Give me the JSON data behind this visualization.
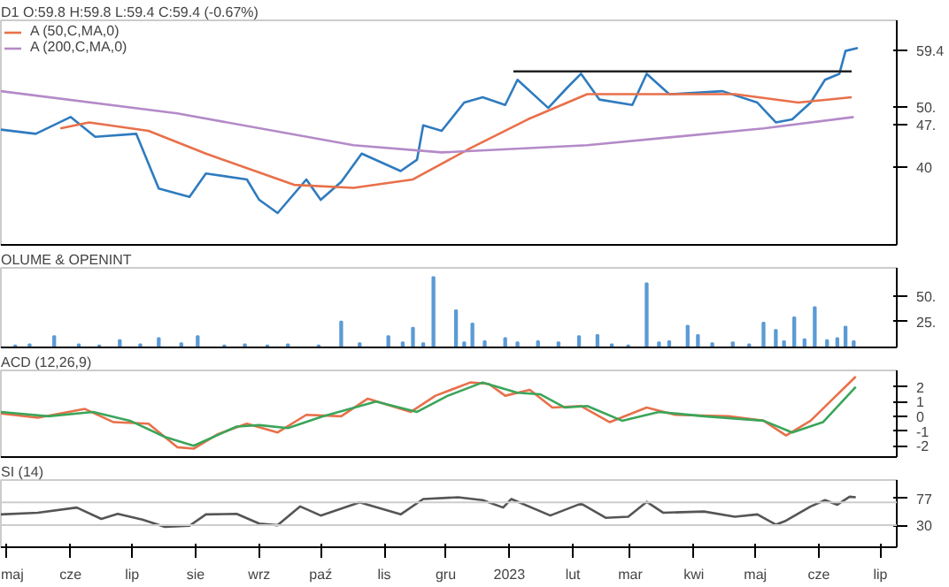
{
  "chart_data": [
    {
      "type": "line",
      "title": "D1 O:59.8 H:59.8 L:59.4 C:59.4 (-0.67%)",
      "xlim": [
        "2022-04-28",
        "2023-07-09"
      ],
      "ylim": [
        27.0,
        64.4
      ],
      "yticks": [
        40,
        {
          "value": 59.4,
          "label": "59.4"
        },
        {
          "value": 50,
          "label": "50."
        },
        {
          "value": 47,
          "label": "47."
        }
      ],
      "tick_labels": "y",
      "legend": "top left",
      "series": [
        {
          "color": "#2f7bbf",
          "x": [
            "2022-04-28",
            "2022-05-15",
            "2022-06-01",
            "2022-06-13",
            "2022-07-03",
            "2022-07-14",
            "2022-07-29",
            "2022-08-06",
            "2022-08-26",
            "2022-09-01",
            "2022-09-10",
            "2022-09-24",
            "2022-10-01",
            "2022-10-11",
            "2022-10-21",
            "2022-11-09",
            "2022-11-17",
            "2022-11-20",
            "2022-11-29",
            "2022-12-10",
            "2022-12-19",
            "2022-12-30",
            "2023-01-05",
            "2023-01-20",
            "2023-01-29",
            "2023-02-05",
            "2023-02-14",
            "2023-03-02",
            "2023-03-09",
            "2023-03-20",
            "2023-04-15",
            "2023-05-02",
            "2023-05-11",
            "2023-05-19",
            "2023-05-28",
            "2023-06-04",
            "2023-06-11",
            "2023-06-14",
            "2023-06-20"
          ],
          "values": [
            46.2,
            45.5,
            48.3,
            45.0,
            45.5,
            36.4,
            35.0,
            38.9,
            37.9,
            34.5,
            32.3,
            37.9,
            34.5,
            37.5,
            42.2,
            39.3,
            41.2,
            46.9,
            46.0,
            50.7,
            51.6,
            50.3,
            54.5,
            49.8,
            53.1,
            55.5,
            51.2,
            50.3,
            55.5,
            52.1,
            52.6,
            50.7,
            47.4,
            47.9,
            50.7,
            54.5,
            55.5,
            59.3,
            59.8
          ]
        },
        {
          "name": "A (50,C,MA,0)",
          "color": "#e8704a",
          "x": [
            "2022-05-27",
            "2022-06-10",
            "2022-07-09",
            "2022-08-06",
            "2022-09-18",
            "2022-10-17",
            "2022-11-15",
            "2022-12-13",
            "2023-01-10",
            "2023-02-08",
            "2023-03-09",
            "2023-04-21",
            "2023-05-22",
            "2023-06-17"
          ],
          "values": [
            46.4,
            47.4,
            46.0,
            42.2,
            37.0,
            36.5,
            37.9,
            43.1,
            47.9,
            52.1,
            52.1,
            52.1,
            50.7,
            51.6
          ]
        },
        {
          "name": "A (200,C,MA,0)",
          "color": "#b48ac8",
          "x": [
            "2022-04-28",
            "2022-07-23",
            "2022-10-17",
            "2022-11-29",
            "2023-02-08",
            "2023-05-05",
            "2023-06-18"
          ],
          "values": [
            52.6,
            48.9,
            43.6,
            42.4,
            43.6,
            46.4,
            48.3
          ]
        },
        {
          "color": "#222222",
          "x": [
            "2023-01-03",
            "2023-06-17"
          ],
          "values": [
            55.9,
            55.9
          ]
        }
      ]
    },
    {
      "type": "bar",
      "title": "OLUME & OPENINT",
      "xlim": [
        "2022-04-28",
        "2023-07-09"
      ],
      "ylim": [
        0,
        77
      ],
      "yticks": [
        {
          "value": 25,
          "label": "25."
        },
        {
          "value": 50,
          "label": "50."
        }
      ],
      "tick_labels": "y",
      "series": [
        {
          "color": "#5b9bd5",
          "x": [
            "2022-05-05",
            "2022-05-12",
            "2022-05-24",
            "2022-06-05",
            "2022-06-15",
            "2022-06-25",
            "2022-07-05",
            "2022-07-14",
            "2022-07-25",
            "2022-08-02",
            "2022-08-15",
            "2022-08-25",
            "2022-09-05",
            "2022-09-15",
            "2022-09-30",
            "2022-10-11",
            "2022-10-20",
            "2022-11-03",
            "2022-11-10",
            "2022-11-15",
            "2022-11-20",
            "2022-11-25",
            "2022-12-06",
            "2022-12-10",
            "2022-12-14",
            "2022-12-20",
            "2022-12-30",
            "2023-01-05",
            "2023-01-15",
            "2023-01-25",
            "2023-02-04",
            "2023-02-13",
            "2023-02-20",
            "2023-02-28",
            "2023-03-09",
            "2023-03-15",
            "2023-03-20",
            "2023-03-29",
            "2023-04-03",
            "2023-04-10",
            "2023-04-20",
            "2023-04-28",
            "2023-05-05",
            "2023-05-11",
            "2023-05-15",
            "2023-05-20",
            "2023-05-25",
            "2023-05-30",
            "2023-06-05",
            "2023-06-10",
            "2023-06-14",
            "2023-06-18"
          ],
          "values": [
            2,
            3,
            11,
            3,
            2,
            7,
            3,
            9,
            4,
            11,
            2,
            3,
            2,
            3,
            2,
            25,
            4,
            11,
            5,
            19,
            4,
            68,
            36,
            5,
            23,
            6,
            9,
            5,
            6,
            5,
            11,
            12,
            3,
            2,
            62,
            5,
            6,
            21,
            12,
            4,
            5,
            3,
            24,
            17,
            6,
            29,
            8,
            39,
            7,
            9,
            20,
            6
          ]
        }
      ]
    },
    {
      "type": "line",
      "title": "ACD (12,26,9)",
      "xlim": [
        "2022-04-28",
        "2023-07-09"
      ],
      "ylim": [
        -2.77,
        3.12
      ],
      "yticks": [
        -2,
        -1,
        0,
        1,
        2
      ],
      "tick_labels": "y",
      "series": [
        {
          "color": "#e8704a",
          "x": [
            "2022-04-28",
            "2022-05-16",
            "2022-06-08",
            "2022-06-22",
            "2022-07-09",
            "2022-07-23",
            "2022-07-31",
            "2022-08-12",
            "2022-08-26",
            "2022-09-10",
            "2022-09-24",
            "2022-10-11",
            "2022-10-24",
            "2022-11-14",
            "2022-11-26",
            "2022-12-13",
            "2022-12-22",
            "2022-12-30",
            "2023-01-11",
            "2023-01-22",
            "2023-02-05",
            "2023-02-19",
            "2023-03-09",
            "2023-03-23",
            "2023-04-18",
            "2023-05-05",
            "2023-05-16",
            "2023-05-28",
            "2023-06-08",
            "2023-06-19"
          ],
          "values": [
            0.2,
            -0.1,
            0.5,
            -0.4,
            -0.5,
            -2.1,
            -2.2,
            -1.2,
            -0.5,
            -1.1,
            0.1,
            0,
            1.2,
            0.3,
            1.4,
            2.3,
            2.2,
            1.4,
            1.8,
            0.6,
            0.7,
            -0.4,
            0.6,
            0.1,
            0,
            -0.3,
            -1.3,
            -0.3,
            1.2,
            2.7
          ]
        },
        {
          "color": "#3aa55a",
          "x": [
            "2022-04-28",
            "2022-05-21",
            "2022-06-12",
            "2022-06-30",
            "2022-07-17",
            "2022-07-31",
            "2022-08-21",
            "2022-09-01",
            "2022-09-15",
            "2022-10-02",
            "2022-10-28",
            "2022-11-17",
            "2022-12-02",
            "2022-12-19",
            "2023-01-05",
            "2023-01-16",
            "2023-01-28",
            "2023-02-08",
            "2023-02-25",
            "2023-03-15",
            "2023-04-06",
            "2023-05-05",
            "2023-05-19",
            "2023-06-03",
            "2023-06-19"
          ],
          "values": [
            0.3,
            0,
            0.3,
            -0.3,
            -1.4,
            -2.0,
            -0.7,
            -0.6,
            -0.8,
            0,
            1.0,
            0.3,
            1.4,
            2.3,
            1.6,
            1.5,
            0.6,
            0.7,
            -0.3,
            0.3,
            0,
            -0.3,
            -1.1,
            -0.4,
            2.0
          ]
        }
      ]
    },
    {
      "type": "line",
      "title": "SI (14)",
      "xlim": [
        "2022-04-28",
        "2023-07-09"
      ],
      "ylim": [
        -8.6,
        109.3
      ],
      "yticks": [
        30,
        77
      ],
      "xticks": [
        {
          "value": "2022-05-01",
          "label": "maj"
        },
        {
          "value": "2022-06-01",
          "label": "cze"
        },
        {
          "value": "2022-07-01",
          "label": "lip"
        },
        {
          "value": "2022-08-01",
          "label": "sie"
        },
        {
          "value": "2022-09-01",
          "label": "wrz"
        },
        {
          "value": "2022-10-01",
          "label": "paź"
        },
        {
          "value": "2022-11-01",
          "label": "lis"
        },
        {
          "value": "2022-12-01",
          "label": "gru"
        },
        {
          "value": "2023-01-01",
          "label": "2023"
        },
        {
          "value": "2023-02-01",
          "label": "lut"
        },
        {
          "value": "2023-03-01",
          "label": "mar"
        },
        {
          "value": "2023-04-01",
          "label": "kwi"
        },
        {
          "value": "2023-05-01",
          "label": "maj"
        },
        {
          "value": "2023-06-01",
          "label": "cze"
        },
        {
          "value": "2023-07-01",
          "label": "lip"
        }
      ],
      "ref_lines": [
        {
          "axis": "y",
          "value": 70,
          "color": "#cccccc"
        },
        {
          "axis": "y",
          "value": 30,
          "color": "#cccccc"
        }
      ],
      "series": [
        {
          "color": "#555555",
          "x": [
            "2022-04-28",
            "2022-05-16",
            "2022-06-04",
            "2022-06-16",
            "2022-06-24",
            "2022-07-06",
            "2022-07-17",
            "2022-07-29",
            "2022-08-06",
            "2022-08-21",
            "2022-09-01",
            "2022-09-10",
            "2022-09-21",
            "2022-10-01",
            "2022-10-20",
            "2022-11-09",
            "2022-11-20",
            "2022-12-07",
            "2022-12-19",
            "2022-12-29",
            "2023-01-02",
            "2023-01-21",
            "2023-02-05",
            "2023-02-17",
            "2023-02-28",
            "2023-03-09",
            "2023-03-17",
            "2023-04-06",
            "2023-04-21",
            "2023-05-02",
            "2023-05-11",
            "2023-05-16",
            "2023-05-28",
            "2023-06-04",
            "2023-06-10",
            "2023-06-16",
            "2023-06-19"
          ],
          "values": [
            49,
            52,
            61,
            41,
            50,
            40,
            27,
            29,
            49,
            50,
            33,
            30,
            63,
            47,
            70,
            49,
            76,
            79,
            74,
            61,
            76,
            47,
            68,
            43,
            45,
            71,
            52,
            54,
            45,
            49,
            31,
            38,
            63,
            74,
            66,
            80,
            79
          ]
        }
      ]
    }
  ]
}
